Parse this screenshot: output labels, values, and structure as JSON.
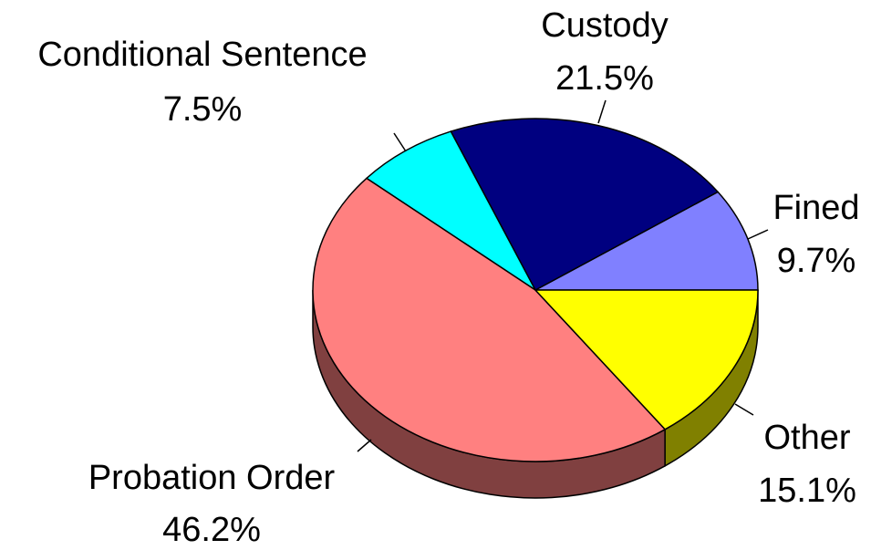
{
  "chart_data": {
    "type": "pie",
    "categories": [
      "Fined",
      "Custody",
      "Conditional Sentence",
      "Probation Order",
      "Other"
    ],
    "values": [
      9.7,
      21.5,
      7.5,
      46.2,
      15.1
    ],
    "value_labels": [
      "9.7%",
      "21.5%",
      "7.5%",
      "46.2%",
      "15.1%"
    ],
    "colors": [
      "#8080ff",
      "#000080",
      "#00ffff",
      "#ff8080",
      "#ffff00"
    ]
  }
}
